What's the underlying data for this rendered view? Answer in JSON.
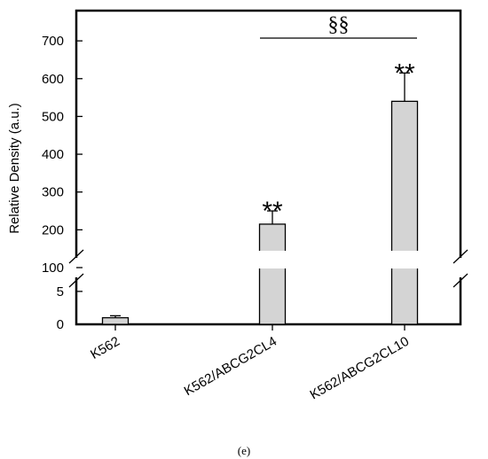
{
  "chart_data": {
    "type": "bar",
    "categories": [
      "K562",
      "K562/ABCG2CL4",
      "K562/ABCG2CL10"
    ],
    "values": [
      1,
      215,
      540
    ],
    "errors": [
      0.3,
      35,
      75
    ],
    "significance": [
      "",
      "**",
      "**"
    ],
    "comparison": {
      "from": 1,
      "to": 2,
      "label": "§§"
    },
    "ylabel": "Relative Density (a.u.)",
    "xlabel": "",
    "title": "",
    "scale": "broken",
    "lower_segment": {
      "range": [
        0,
        7
      ],
      "ticks": [
        "0",
        "5"
      ]
    },
    "upper_segment": {
      "range": [
        100,
        780
      ],
      "ticks": [
        "100",
        "200",
        "300",
        "400",
        "500",
        "600",
        "700"
      ]
    },
    "bar_color": "#d4d4d4",
    "grid": false
  },
  "panel_label": "(e)"
}
